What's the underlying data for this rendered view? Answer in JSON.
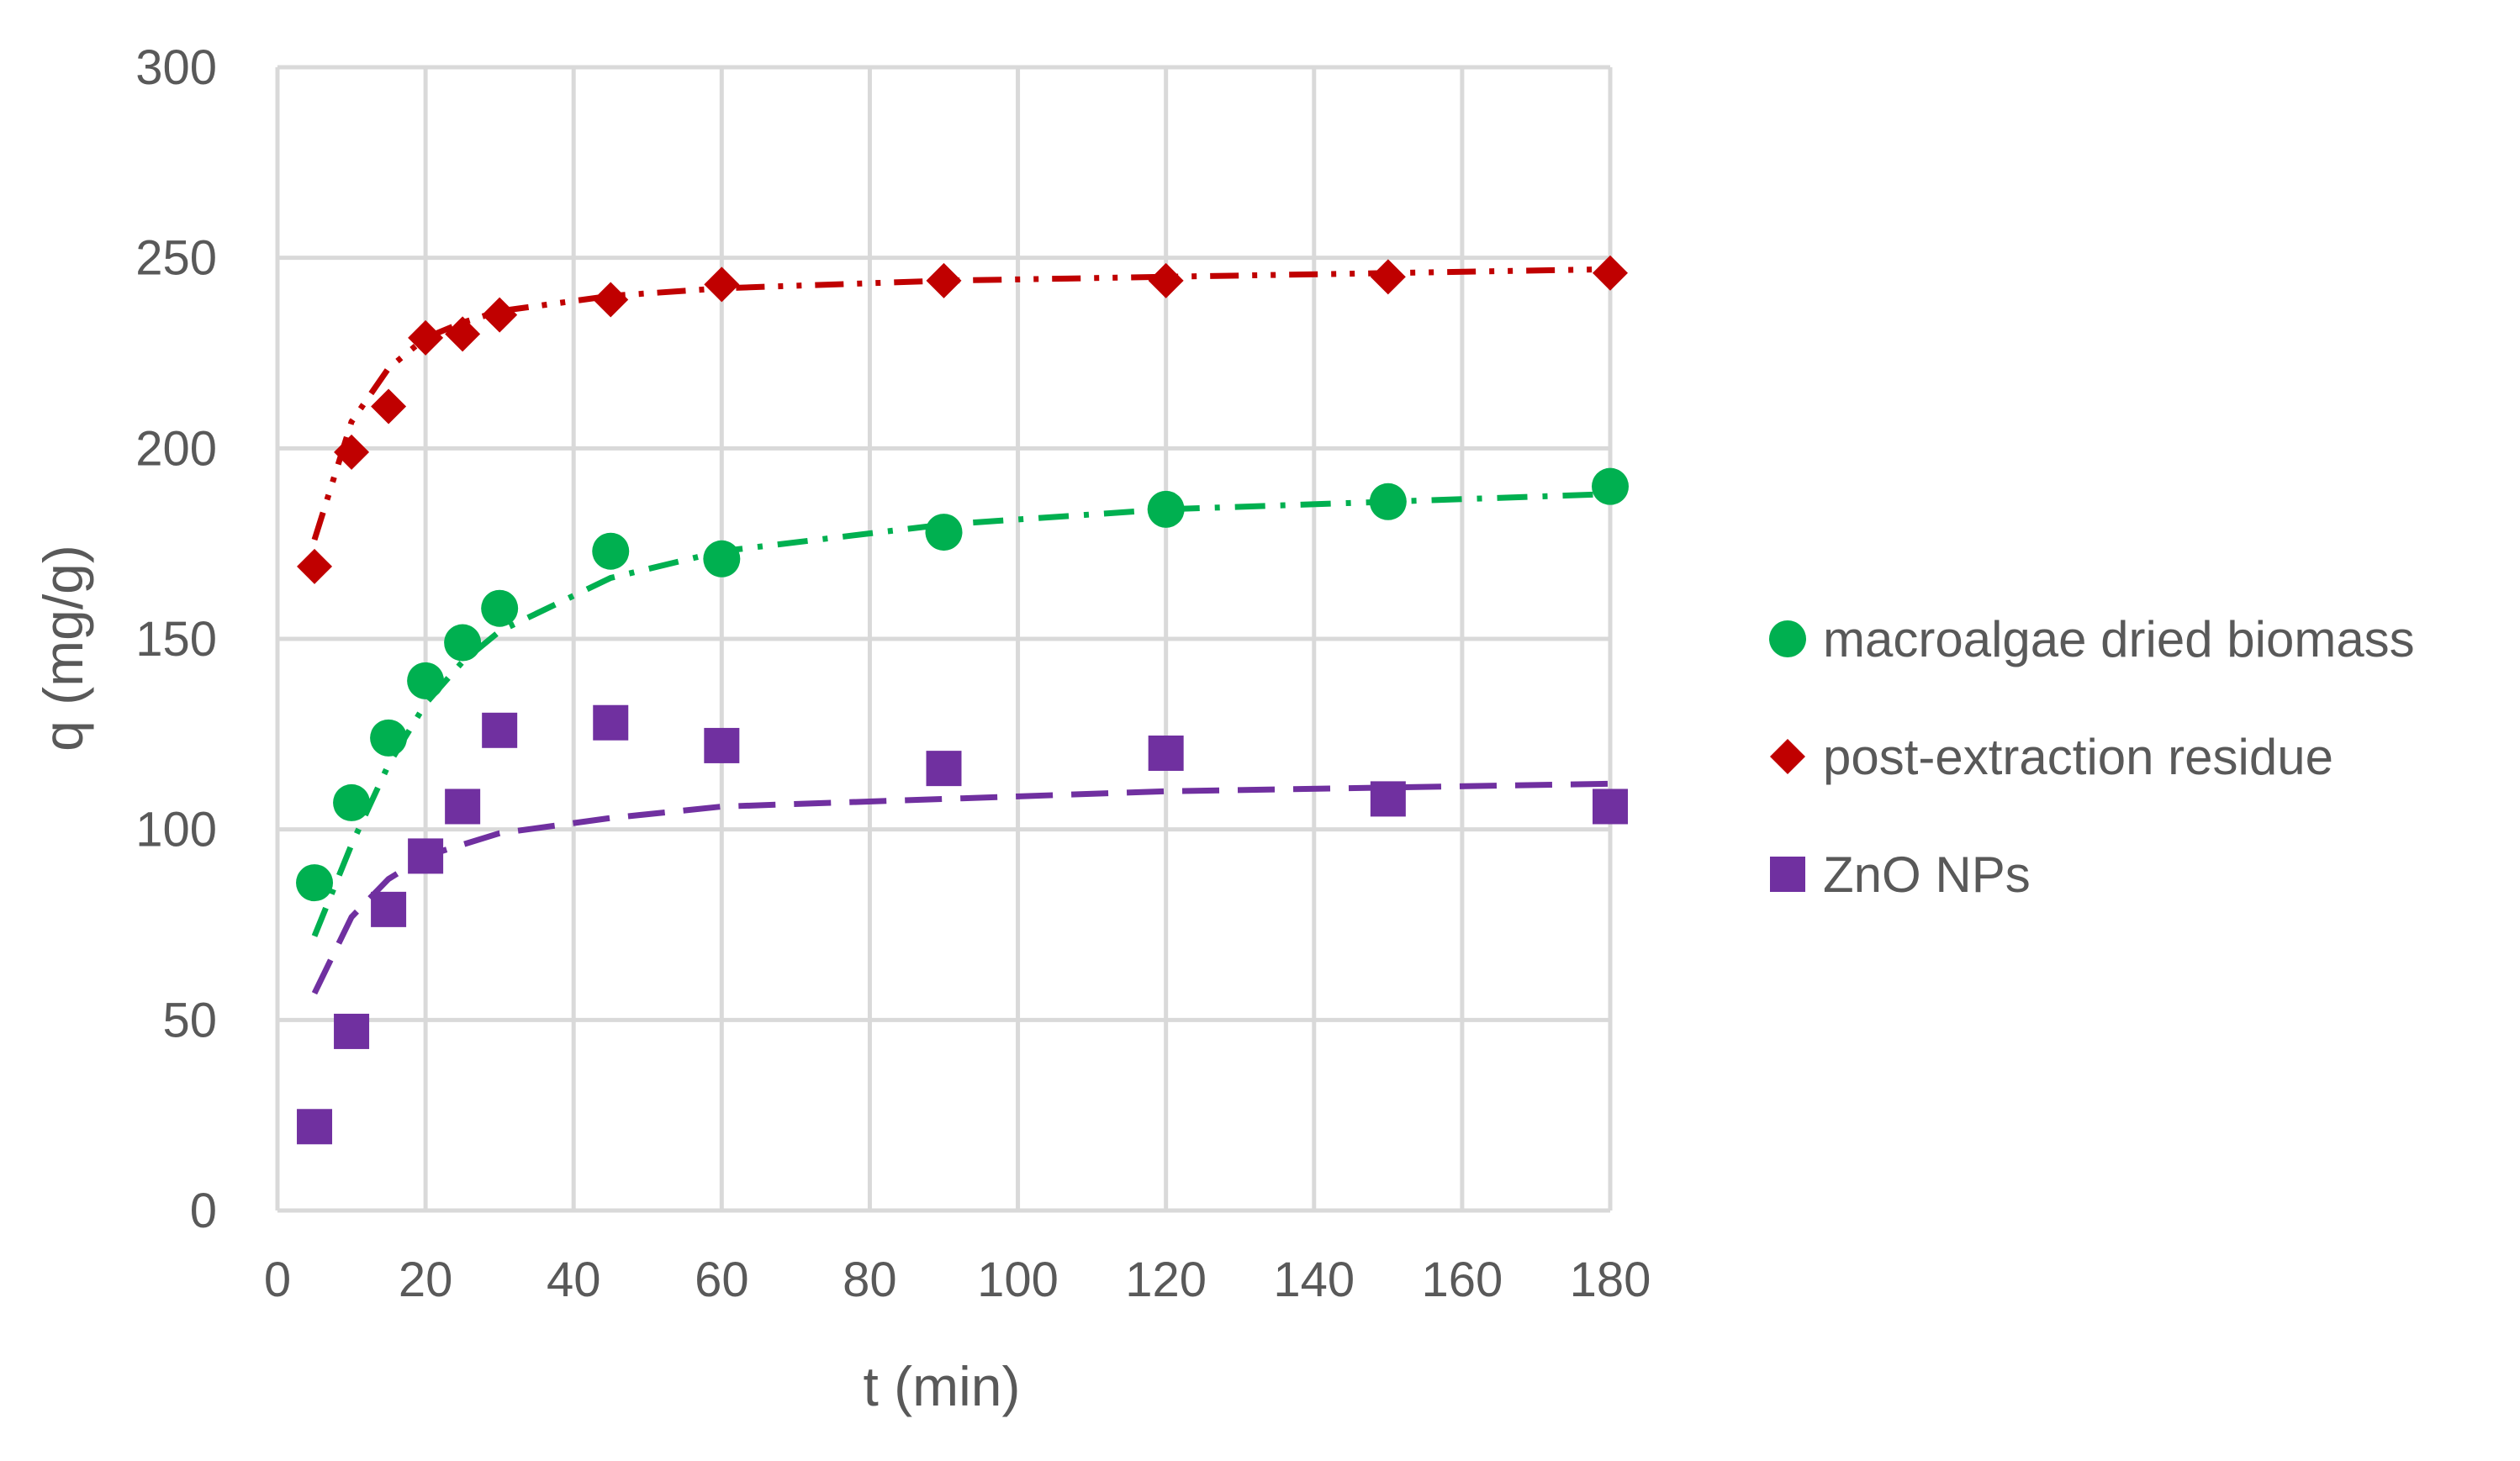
{
  "chart_data": {
    "type": "scatter",
    "xlabel": "t (min)",
    "ylabel": "q (mg/g)",
    "xlim": [
      0,
      180
    ],
    "ylim": [
      0,
      300
    ],
    "xticks": [
      "0",
      "20",
      "40",
      "60",
      "80",
      "100",
      "120",
      "140",
      "160",
      "180"
    ],
    "yticks": [
      "0",
      "50",
      "100",
      "150",
      "200",
      "250",
      "300"
    ],
    "grid": true,
    "legend_position": "right",
    "series": [
      {
        "name": "macroalgae dried biomass",
        "color": "#00b050",
        "marker": "circle",
        "x": [
          5,
          10,
          15,
          20,
          25,
          30,
          45,
          60,
          90,
          120,
          150,
          180
        ],
        "y": [
          86,
          107,
          124,
          139,
          149,
          158,
          173,
          171,
          178,
          184,
          186,
          190
        ],
        "fit": {
          "dash": "dash-dot",
          "x": [
            5,
            10,
            15,
            20,
            25,
            30,
            45,
            60,
            90,
            120,
            150,
            180
          ],
          "y": [
            72,
            96,
            117,
            133,
            144,
            152,
            166,
            173,
            180,
            184,
            186,
            188
          ]
        }
      },
      {
        "name": "post-extraction residue",
        "color": "#c00000",
        "marker": "diamond",
        "x": [
          5,
          10,
          15,
          20,
          25,
          30,
          45,
          60,
          90,
          120,
          150,
          180
        ],
        "y": [
          169,
          199,
          211,
          229,
          230,
          235,
          239,
          243,
          244,
          244,
          245,
          246
        ],
        "fit": {
          "dash": "dash-dot-dot",
          "x": [
            5,
            10,
            15,
            20,
            25,
            30,
            45,
            60,
            90,
            120,
            150,
            180
          ],
          "y": [
            176,
            207,
            221,
            229,
            233,
            236,
            240,
            242,
            244,
            245,
            246,
            247
          ]
        }
      },
      {
        "name": "ZnO NPs",
        "color": "#7030a0",
        "marker": "square",
        "x": [
          5,
          10,
          15,
          20,
          25,
          30,
          45,
          60,
          90,
          120,
          150,
          180
        ],
        "y": [
          22,
          47,
          79,
          93,
          106,
          126,
          128,
          122,
          116,
          120,
          108,
          106
        ],
        "fit": {
          "dash": "long-dash",
          "x": [
            5,
            10,
            15,
            20,
            25,
            30,
            45,
            60,
            90,
            120,
            150,
            180
          ],
          "y": [
            57,
            77,
            87,
            93,
            96,
            99,
            103,
            106,
            108,
            110,
            111,
            112
          ]
        }
      }
    ]
  }
}
